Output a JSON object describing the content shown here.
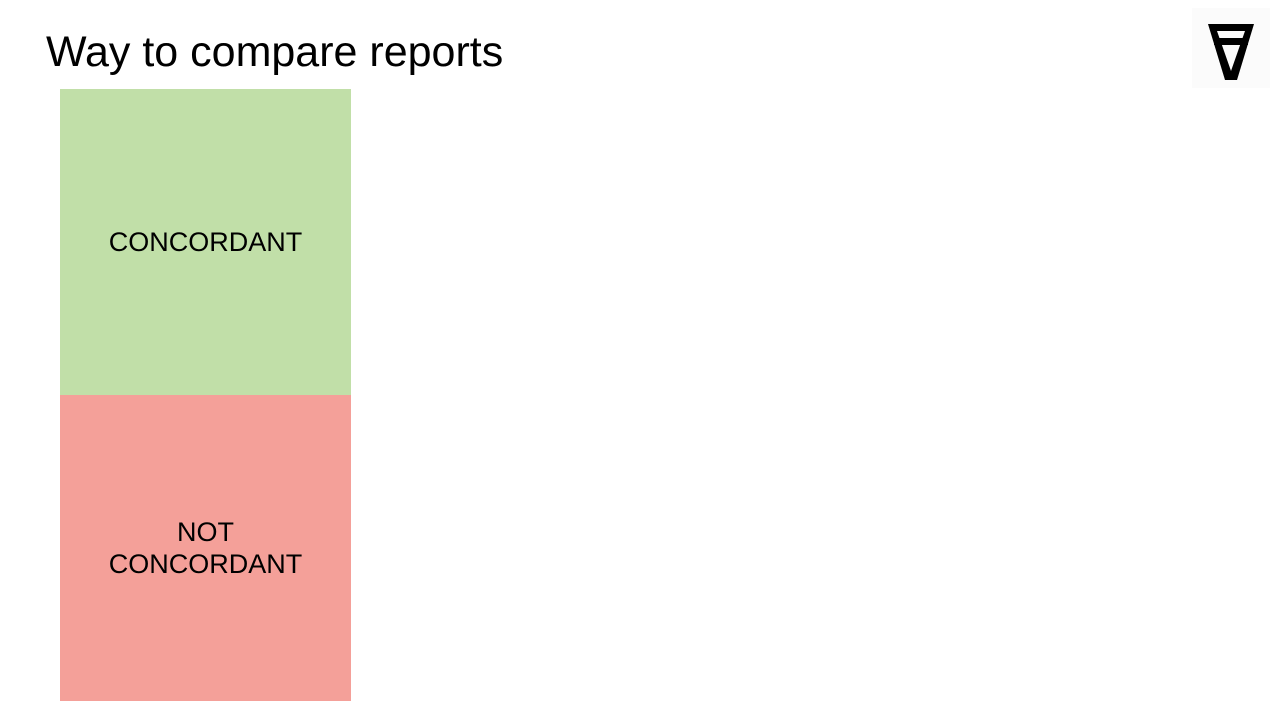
{
  "slide": {
    "title": "Way to compare reports",
    "logo_icon": "inverted-a-logo-icon"
  },
  "boxes": [
    {
      "label": "CONCORDANT",
      "color": "#c1dfa8"
    },
    {
      "label": "NOT CONCORDANT",
      "color": "#f4a099"
    }
  ]
}
